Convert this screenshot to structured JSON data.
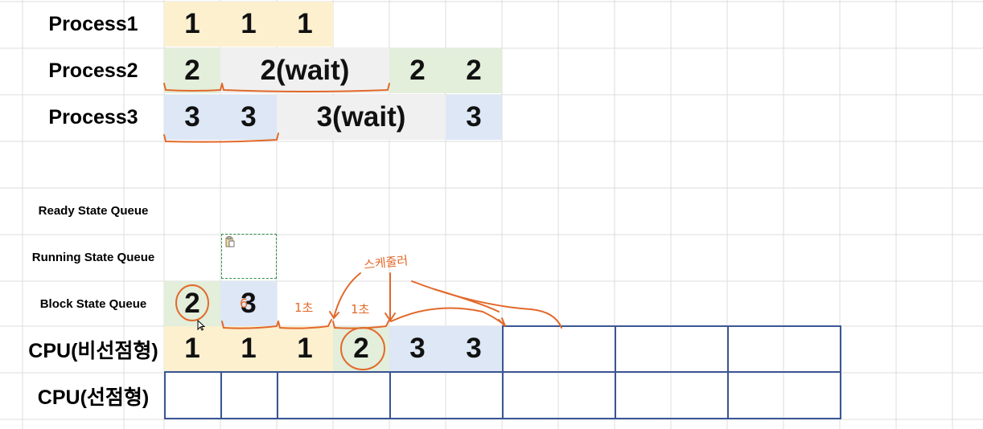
{
  "processes": [
    {
      "label": "Process1",
      "cells": [
        "1",
        "1",
        "1"
      ]
    },
    {
      "label": "Process2",
      "cells": [
        "2",
        "2(wait)",
        "2",
        "2"
      ]
    },
    {
      "label": "Process3",
      "cells": [
        "3",
        "3",
        "3(wait)",
        "3"
      ]
    }
  ],
  "queues": {
    "ready": "Ready State Queue",
    "running": "Running State Queue",
    "block": "Block State Queue",
    "block_cells": [
      "2",
      "3"
    ]
  },
  "cpu_nonpreemptive": {
    "label": "CPU(비선점형)",
    "cells": [
      "1",
      "1",
      "1",
      "2",
      "3",
      "3"
    ]
  },
  "cpu_preemptive": {
    "label": "CPU(선점형)"
  },
  "annotations": {
    "scheduler": "스케줄러",
    "one_sec_a": "1초",
    "one_sec_b": "1초",
    "mark": "6"
  },
  "colors": {
    "process1": "#fcf0cf",
    "process2": "#e3eedb",
    "process3": "#dde7f5",
    "wait": "#f0f0f0",
    "ink": "#e2692a",
    "cpu_border": "#3b5694"
  }
}
